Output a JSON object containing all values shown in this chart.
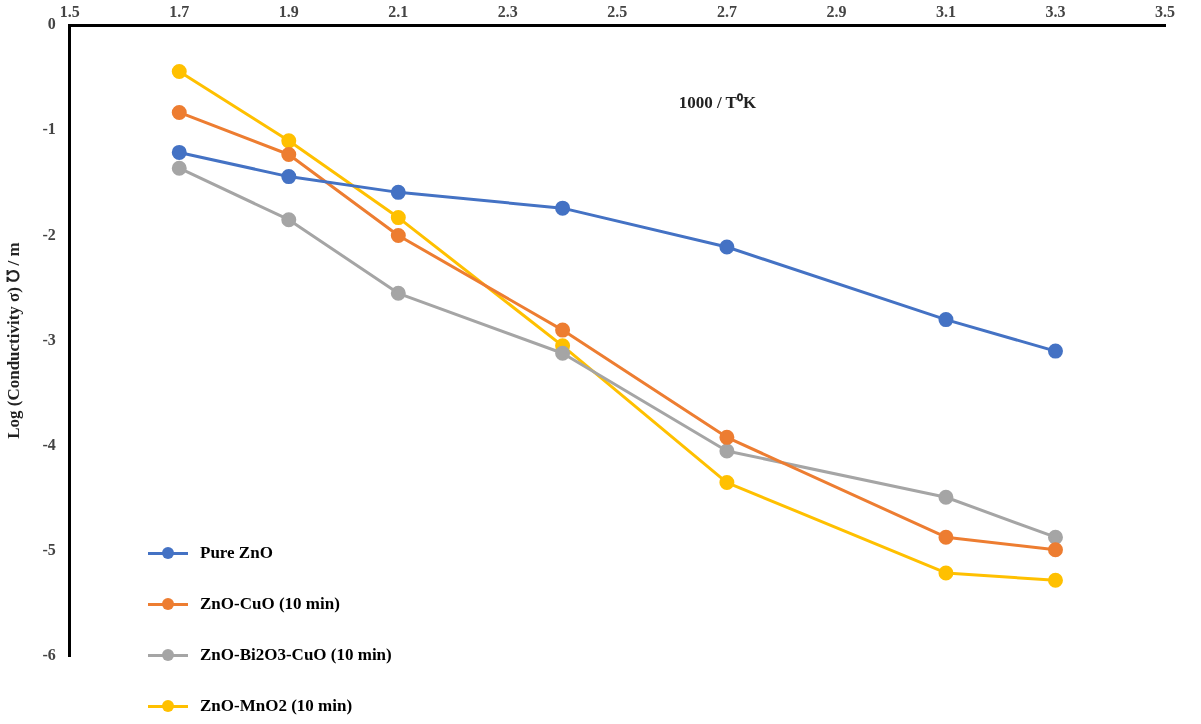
{
  "chart_data": {
    "type": "line",
    "xlabel": "1000 / T⁰K",
    "ylabel": "Log (Conductivity σ) ℧ / m",
    "x": [
      1.7,
      1.9,
      2.1,
      2.4,
      2.7,
      3.1,
      3.3
    ],
    "xlim": [
      1.5,
      3.5
    ],
    "xticks": [
      1.5,
      1.7,
      1.9,
      2.1,
      2.3,
      2.5,
      2.7,
      2.9,
      3.1,
      3.3,
      3.5
    ],
    "ylim": [
      -6,
      0
    ],
    "yticks": [
      -6,
      -5,
      -4,
      -3,
      -2,
      -1,
      0
    ],
    "grid": false,
    "legend": "bottom left",
    "marker": "circle",
    "line_style": "solid",
    "series": [
      {
        "name": "Pure ZnO",
        "color": "#4472c4",
        "values": [
          -1.21,
          -1.44,
          -1.59,
          -1.74,
          -2.11,
          -2.8,
          -3.1
        ]
      },
      {
        "name": "ZnO-CuO (10 min)",
        "color": "#ed7d31",
        "values": [
          -0.83,
          -1.23,
          -2.0,
          -2.9,
          -3.92,
          -4.87,
          -4.99
        ]
      },
      {
        "name": "ZnO-Bi2O3-CuO (10 min)",
        "color": "#a5a5a5",
        "values": [
          -1.36,
          -1.85,
          -2.55,
          -3.12,
          -4.05,
          -4.49,
          -4.87
        ]
      },
      {
        "name": "ZnO-MnO2 (10 min)",
        "color": "#ffc000",
        "values": [
          -0.44,
          -1.1,
          -1.83,
          -3.05,
          -4.35,
          -5.21,
          -5.28
        ]
      }
    ]
  }
}
